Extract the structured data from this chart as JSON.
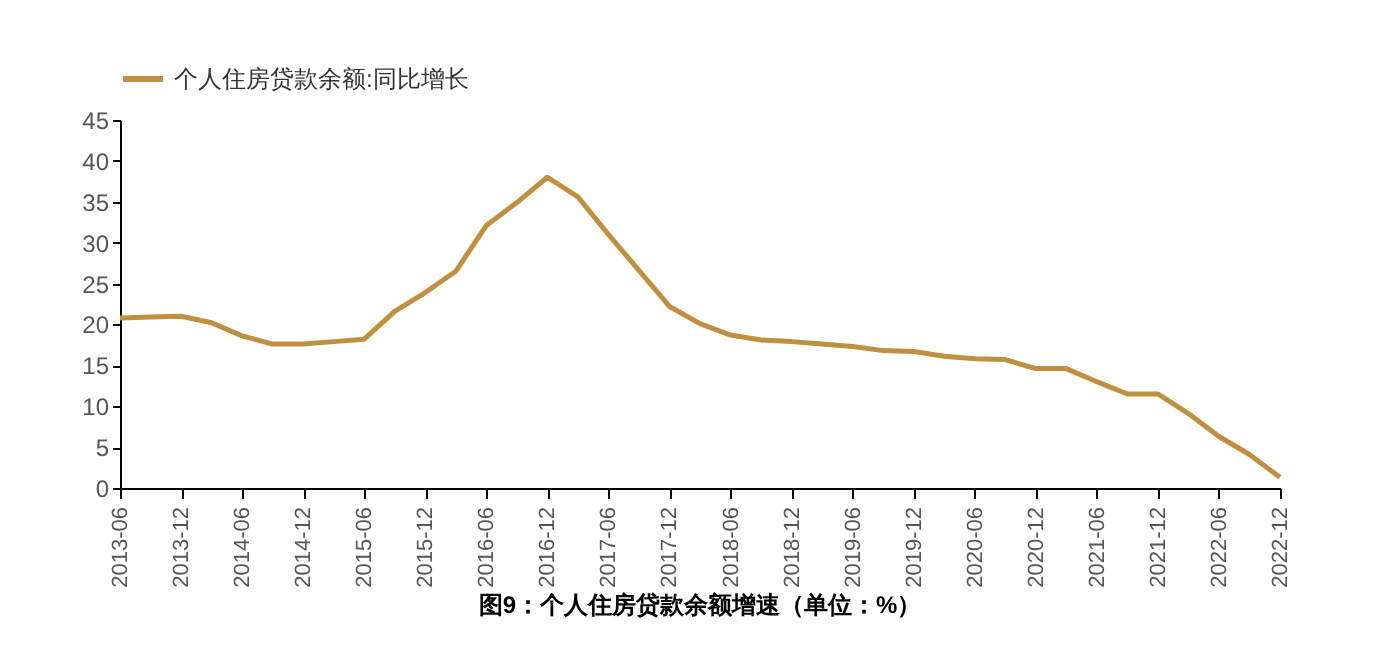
{
  "chart_data": {
    "type": "line",
    "categories": [
      "2013-06",
      null,
      "2013-12",
      null,
      "2014-06",
      null,
      "2014-12",
      null,
      "2015-06",
      null,
      "2015-12",
      null,
      "2016-06",
      null,
      "2016-12",
      null,
      "2017-06",
      null,
      "2017-12",
      null,
      "2018-06",
      null,
      "2018-12",
      null,
      "2019-06",
      null,
      "2019-12",
      null,
      "2020-06",
      null,
      "2020-12",
      null,
      "2021-06",
      null,
      "2021-12",
      null,
      "2022-06",
      null,
      "2022-12"
    ],
    "series": [
      {
        "name": "个人住房贷款余额:同比增长",
        "color": "#c09040",
        "values": [
          20.8,
          20.9,
          21.0,
          20.2,
          18.6,
          17.6,
          17.6,
          17.9,
          18.2,
          21.6,
          23.9,
          26.5,
          32.1,
          34.9,
          38.0,
          35.6,
          31.0,
          26.6,
          22.2,
          20.1,
          18.7,
          18.1,
          17.9,
          17.6,
          17.3,
          16.8,
          16.7,
          16.1,
          15.8,
          15.7,
          14.6,
          14.6,
          13.0,
          11.5,
          11.5,
          9.1,
          6.3,
          4.1,
          1.3
        ]
      }
    ],
    "ylim": [
      0,
      45
    ],
    "yticks": [
      0,
      5,
      10,
      15,
      20,
      25,
      30,
      35,
      40,
      45
    ],
    "grid": false,
    "legend": "top",
    "marker": "none",
    "line_style": "solid",
    "annotations": [
      "图9：个人住房贷款余额增速（单位：%）"
    ]
  }
}
